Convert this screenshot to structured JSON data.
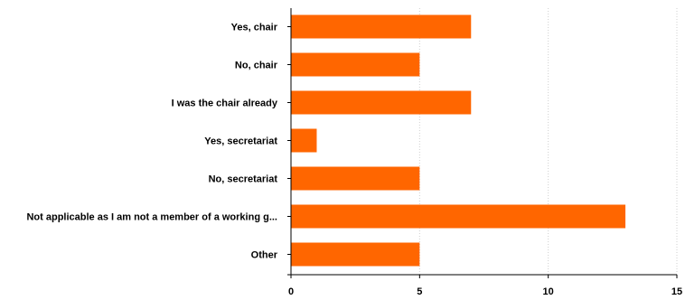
{
  "chart_data": {
    "type": "bar",
    "orientation": "horizontal",
    "categories": [
      "Yes, chair",
      "No, chair",
      "I was the chair already",
      "Yes, secretariat",
      "No, secretariat",
      "Not applicable as I am not a member of a working g...",
      "Other"
    ],
    "values": [
      7,
      5,
      7,
      1,
      5,
      13,
      5
    ],
    "xlim": [
      0,
      15
    ],
    "x_ticks": [
      0,
      5,
      10,
      15
    ],
    "grid": "vertical dotted",
    "bar_color": "#ff6600",
    "title": "",
    "xlabel": "",
    "ylabel": ""
  }
}
